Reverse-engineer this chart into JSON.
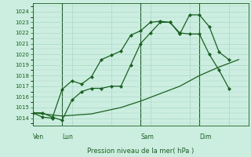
{
  "xlabel": "Pression niveau de la mer( hPa )",
  "ylim": [
    1013.3,
    1024.8
  ],
  "yticks": [
    1014,
    1015,
    1016,
    1017,
    1018,
    1019,
    1020,
    1021,
    1022,
    1023,
    1024
  ],
  "bg_color": "#cceee0",
  "grid_color": "#aad8c8",
  "line_color": "#1a6020",
  "vline_color": "#2a7030",
  "day_labels": [
    "Ven",
    "Lun",
    "Sam",
    "Dim"
  ],
  "day_positions": [
    0.0,
    1.5,
    5.5,
    8.5
  ],
  "xlim": [
    0,
    11
  ],
  "line1_x": [
    0,
    0.5,
    1.0,
    1.5,
    2.0,
    2.5,
    3.0,
    3.5,
    4.0,
    4.5,
    5.0,
    5.5,
    6.0,
    6.5,
    7.0,
    7.5,
    8.0,
    8.5,
    9.0,
    9.5,
    10.0
  ],
  "line1_y": [
    1014.5,
    1014.1,
    1014.0,
    1016.7,
    1017.5,
    1017.2,
    1017.9,
    1019.5,
    1019.9,
    1020.3,
    1021.8,
    1022.2,
    1023.0,
    1023.1,
    1023.0,
    1021.9,
    1023.7,
    1023.7,
    1022.6,
    1020.2,
    1019.5
  ],
  "line2_x": [
    0,
    0.5,
    1.0,
    1.5,
    2.0,
    2.5,
    3.0,
    3.5,
    4.0,
    4.5,
    5.0,
    5.5,
    6.0,
    6.5,
    7.0,
    7.5,
    8.0,
    8.5,
    9.0,
    9.5,
    10.0
  ],
  "line2_y": [
    1014.5,
    1014.5,
    1014.1,
    1013.8,
    1015.7,
    1016.5,
    1016.8,
    1016.8,
    1017.0,
    1017.0,
    1019.0,
    1021.0,
    1022.0,
    1023.0,
    1023.0,
    1022.0,
    1021.9,
    1021.9,
    1020.0,
    1018.5,
    1016.8
  ],
  "line3_x": [
    0,
    1.5,
    3.0,
    4.5,
    5.5,
    6.5,
    7.5,
    8.5,
    9.5,
    10.5
  ],
  "line3_y": [
    1014.5,
    1014.2,
    1014.4,
    1015.0,
    1015.6,
    1016.3,
    1017.0,
    1018.0,
    1018.8,
    1019.5
  ]
}
